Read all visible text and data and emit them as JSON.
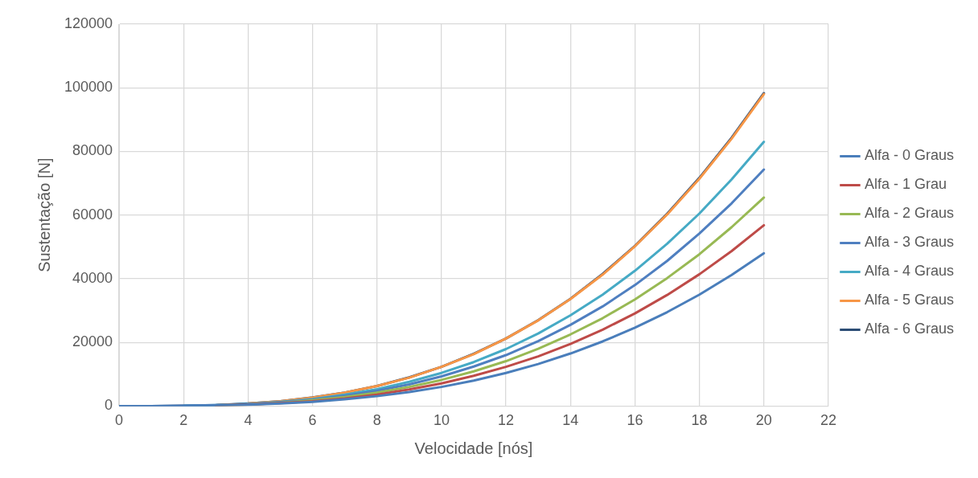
{
  "chart_data": {
    "type": "line",
    "xlabel": "Velocidade [nós]",
    "ylabel": "Sustentação [N]",
    "x": [
      0,
      1,
      2,
      3,
      4,
      5,
      6,
      7,
      8,
      9,
      10,
      11,
      12,
      13,
      14,
      15,
      16,
      17,
      18,
      19,
      20
    ],
    "xlim": [
      0,
      22
    ],
    "xticks": [
      0,
      2,
      4,
      6,
      8,
      10,
      12,
      14,
      16,
      18,
      20,
      22
    ],
    "ylim": [
      0,
      120000
    ],
    "yticks": [
      0,
      20000,
      40000,
      60000,
      80000,
      100000,
      120000
    ],
    "grid": true,
    "legend": "right",
    "marker": "none",
    "line_style": "solid",
    "series": [
      {
        "name": "Alfa - 0 Graus",
        "color": "#4a7ebb",
        "values": [
          0,
          0,
          0,
          200,
          400,
          800,
          1300,
          2100,
          3100,
          4400,
          6000,
          8000,
          10400,
          13200,
          16500,
          20300,
          24600,
          29500,
          35000,
          41200,
          48000
        ]
      },
      {
        "name": "Alfa - 1 Grau",
        "color": "#be4b48",
        "values": [
          null,
          null,
          null,
          200,
          500,
          900,
          1500,
          2400,
          3600,
          5200,
          7100,
          9500,
          12300,
          15600,
          19500,
          24000,
          29100,
          34900,
          41400,
          48700,
          56800
        ]
      },
      {
        "name": "Alfa - 2 Graus",
        "color": "#98b954",
        "values": [
          null,
          null,
          null,
          200,
          500,
          1000,
          1800,
          2800,
          4200,
          6000,
          8200,
          10900,
          14100,
          18000,
          22500,
          27600,
          33500,
          40200,
          47700,
          56200,
          65500
        ]
      },
      {
        "name": "Alfa - 3 Graus",
        "color": "#4f7fc0",
        "values": [
          0,
          0,
          100,
          300,
          600,
          1200,
          2000,
          3200,
          4800,
          6800,
          9300,
          12400,
          16000,
          20400,
          25500,
          31300,
          38000,
          45600,
          54200,
          63700,
          74300
        ]
      },
      {
        "name": "Alfa - 4 Graus",
        "color": "#46aac5",
        "values": [
          null,
          null,
          100,
          300,
          700,
          1300,
          2200,
          3600,
          5300,
          7600,
          10400,
          13800,
          17900,
          22800,
          28500,
          35000,
          42500,
          51000,
          60500,
          71200,
          83000
        ]
      },
      {
        "name": "Alfa - 5 Graus",
        "color": "#f79646",
        "values": [
          null,
          null,
          null,
          null,
          800,
          1500,
          2600,
          4200,
          6300,
          8900,
          12300,
          16300,
          21200,
          26900,
          33600,
          41300,
          50200,
          60200,
          71400,
          84000,
          98000
        ]
      },
      {
        "name": "Alfa - 6 Graus",
        "color": "#2c4d75",
        "values": [
          0,
          0,
          100,
          300,
          800,
          1500,
          2700,
          4200,
          6300,
          9000,
          12300,
          16400,
          21200,
          27000,
          33700,
          41500,
          50300,
          60400,
          71700,
          84300,
          98300
        ]
      }
    ]
  }
}
